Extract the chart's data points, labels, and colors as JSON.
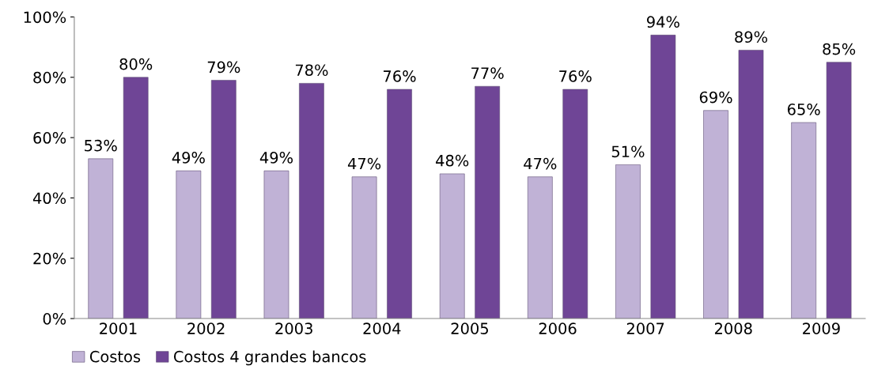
{
  "chart_data": {
    "type": "bar",
    "categories": [
      "2001",
      "2002",
      "2003",
      "2004",
      "2005",
      "2006",
      "2007",
      "2008",
      "2009"
    ],
    "series": [
      {
        "name": "Costos",
        "color": "#c0b2d6",
        "values": [
          53,
          49,
          49,
          47,
          48,
          47,
          51,
          69,
          65
        ],
        "value_labels": [
          "53%",
          "49%",
          "49%",
          "47%",
          "48%",
          "47%",
          "51%",
          "69%",
          "65%"
        ]
      },
      {
        "name": "Costos 4 grandes bancos",
        "color": "#6f4596",
        "values": [
          80,
          79,
          78,
          76,
          77,
          76,
          94,
          89,
          85
        ],
        "value_labels": [
          "80%",
          "79%",
          "78%",
          "76%",
          "77%",
          "76%",
          "94%",
          "89%",
          "85%"
        ]
      }
    ],
    "ylim": [
      0,
      100
    ],
    "yticks": [
      {
        "value": 0,
        "label": "0%"
      },
      {
        "value": 20,
        "label": "20%"
      },
      {
        "value": 40,
        "label": "40%"
      },
      {
        "value": 60,
        "label": "60%"
      },
      {
        "value": 80,
        "label": "80%"
      },
      {
        "value": 100,
        "label": "100%"
      }
    ],
    "grid": false,
    "legend": "bottom left"
  }
}
